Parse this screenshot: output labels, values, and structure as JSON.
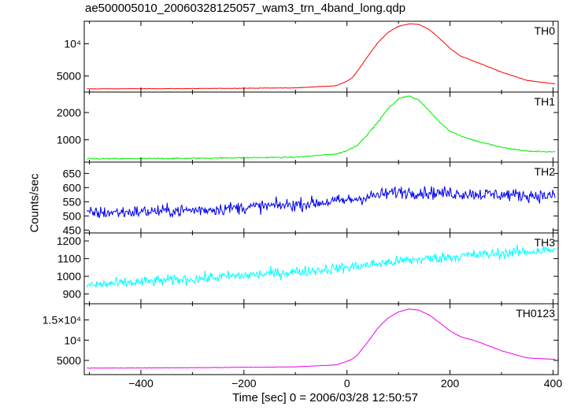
{
  "chart_data": {
    "type": "line",
    "title": "ae500005010_20060328125057_wam3_trn_4band_long.qdp",
    "xlabel": "Time [sec] 0 = 2006/03/28 12:50:57",
    "ylabel": "Counts/sec",
    "xlim": [
      -510,
      410
    ],
    "x_ticks": [
      -400,
      -200,
      0,
      200,
      400
    ],
    "x_tick_labels": [
      "−400",
      "−200",
      "0",
      "200",
      "400"
    ],
    "grid": false,
    "panels": [
      {
        "name": "TH0",
        "color": "#ff0000",
        "ylim": [
          2500,
          13500
        ],
        "y_ticks": [
          5000,
          10000
        ],
        "y_tick_labels": [
          "5000",
          "10⁴"
        ],
        "noise": 40,
        "x": [
          -500,
          -300,
          -100,
          -20,
          0,
          10,
          20,
          40,
          60,
          80,
          100,
          120,
          140,
          160,
          180,
          200,
          220,
          250,
          300,
          350,
          400
        ],
        "y": [
          3000,
          3050,
          3150,
          3500,
          4200,
          4700,
          5700,
          8000,
          10200,
          11800,
          12700,
          13100,
          13000,
          12200,
          10800,
          9300,
          8100,
          7200,
          5600,
          4300,
          3800
        ]
      },
      {
        "name": "TH1",
        "color": "#00ee00",
        "ylim": [
          180,
          2750
        ],
        "y_ticks": [
          1000,
          2000
        ],
        "y_tick_labels": [
          "1000",
          "2000"
        ],
        "noise": 25,
        "x": [
          -500,
          -300,
          -100,
          -20,
          0,
          20,
          40,
          60,
          80,
          100,
          120,
          140,
          160,
          180,
          200,
          220,
          250,
          300,
          350,
          400
        ],
        "y": [
          300,
          320,
          360,
          480,
          600,
          800,
          1200,
          1650,
          2150,
          2500,
          2620,
          2450,
          2050,
          1650,
          1320,
          1150,
          960,
          720,
          580,
          560
        ]
      },
      {
        "name": "TH2",
        "color": "#0000ee",
        "ylim": [
          440,
          690
        ],
        "y_ticks": [
          450,
          500,
          550,
          600,
          650
        ],
        "y_tick_labels": [
          "450",
          "500",
          "550",
          "600",
          "650"
        ],
        "noise": 22,
        "x": [
          -500,
          -300,
          -100,
          0,
          100,
          200,
          300,
          400
        ],
        "y": [
          510,
          520,
          540,
          555,
          585,
          580,
          575,
          570
        ]
      },
      {
        "name": "TH3",
        "color": "#00ffff",
        "ylim": [
          845,
          1245
        ],
        "y_ticks": [
          900,
          1000,
          1100,
          1200
        ],
        "y_tick_labels": [
          "900",
          "1000",
          "1100",
          "1200"
        ],
        "noise": 30,
        "x": [
          -500,
          -300,
          -100,
          0,
          100,
          200,
          300,
          400
        ],
        "y": [
          950,
          985,
          1025,
          1050,
          1085,
          1110,
          1130,
          1150
        ]
      },
      {
        "name": "TH0123",
        "color": "#ee00ee",
        "ylim": [
          1500,
          19000
        ],
        "y_ticks": [
          5000,
          10000,
          15000
        ],
        "y_tick_labels": [
          "5000",
          "10⁴",
          "1.5×10⁴"
        ],
        "noise": 50,
        "x": [
          -500,
          -300,
          -100,
          -20,
          0,
          10,
          20,
          40,
          60,
          80,
          100,
          120,
          140,
          160,
          180,
          200,
          220,
          250,
          300,
          350,
          400
        ],
        "y": [
          3100,
          3200,
          3400,
          3900,
          4800,
          5300,
          6300,
          9500,
          13000,
          15500,
          17000,
          17700,
          17400,
          16200,
          14300,
          12300,
          10900,
          9800,
          7400,
          5600,
          5300
        ]
      }
    ]
  }
}
